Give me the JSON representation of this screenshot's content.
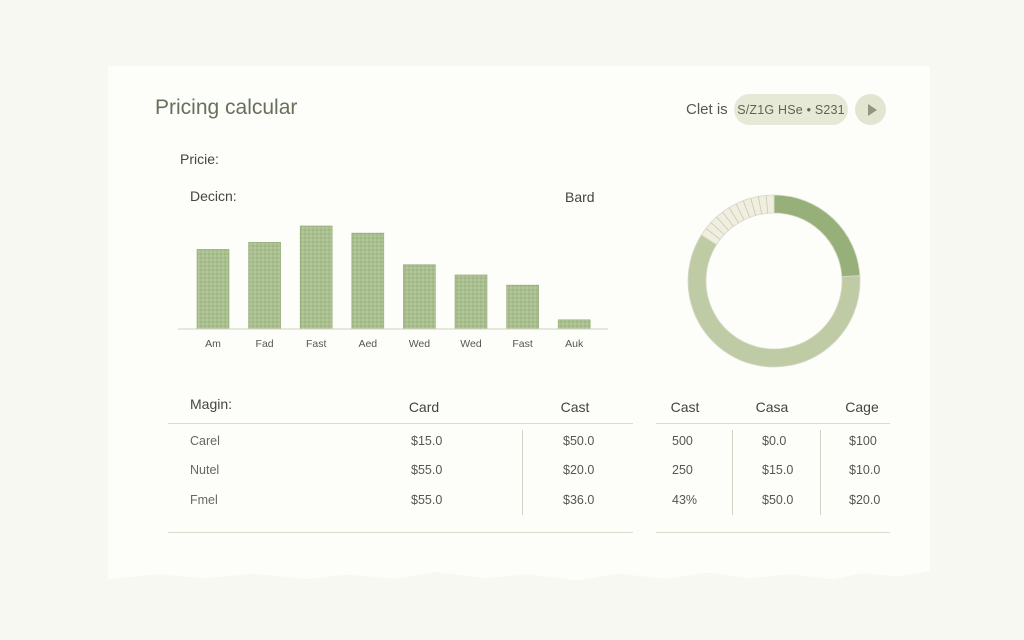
{
  "header": {
    "title": "Pricing calcular",
    "user_label": "Clet is",
    "pill_text": "S/Z1G HSe • S231"
  },
  "section": {
    "label": "Pricie:"
  },
  "chart_data": {
    "type": "bar",
    "left_label": "Decicn:",
    "right_label": "Bard",
    "categories": [
      "Am",
      "Fad",
      "Fast",
      "Aed",
      "Wed",
      "Wed",
      "Fast",
      "Auk"
    ],
    "values": [
      78,
      85,
      101,
      94,
      63,
      53,
      43,
      9
    ],
    "colors": {
      "bar": "#a9bf8f",
      "bar_stroke": "#93aa78",
      "axis": "#cdd3bf"
    }
  },
  "donut": {
    "slices": [
      {
        "name": "segment-dark",
        "value": 24,
        "color": "#97b07a"
      },
      {
        "name": "segment-light",
        "value": 60,
        "color": "#bfcba5"
      },
      {
        "name": "segment-pale",
        "value": 16,
        "color": "#f0eedf"
      }
    ]
  },
  "table": {
    "label": "Magin:",
    "headers": [
      "Card",
      "Cast",
      "Cast",
      "Casa",
      "Cage"
    ],
    "rows": [
      {
        "label": "Carel",
        "values": [
          "$15.0",
          "$50.0",
          "500",
          "$0.0",
          "$100"
        ]
      },
      {
        "label": "Nutel",
        "values": [
          "$55.0",
          "$20.0",
          "250",
          "$15.0",
          "$10.0"
        ]
      },
      {
        "label": "Fmel",
        "values": [
          "$55.0",
          "$36.0",
          "43%",
          "$50.0",
          "$20.0"
        ]
      }
    ]
  }
}
